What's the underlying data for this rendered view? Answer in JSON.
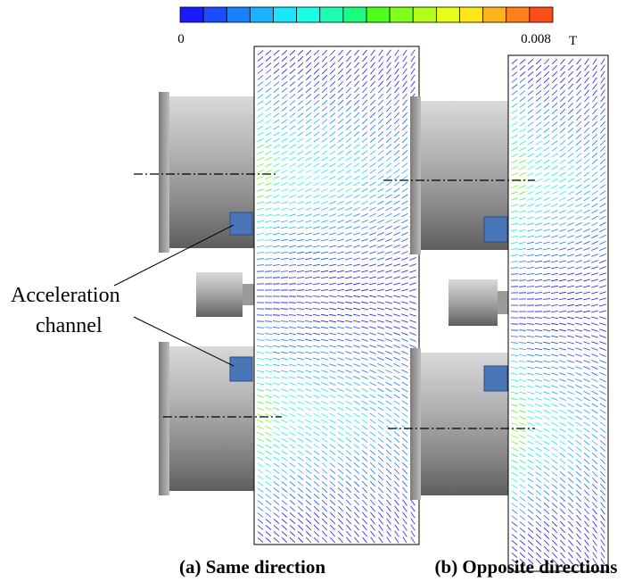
{
  "colorbar": {
    "min": 0,
    "max": 0.008,
    "unit": "T",
    "colormap": [
      "#1a1aff",
      "#1a4dff",
      "#1a80ff",
      "#1ab3ff",
      "#1ae6ff",
      "#1affe6",
      "#1affb3",
      "#1aff80",
      "#4dff1a",
      "#80ff1a",
      "#b3ff1a",
      "#e6ff1a",
      "#ffe61a",
      "#ffb31a",
      "#ff801a",
      "#ff4d1a"
    ]
  },
  "annotation": {
    "line1": "Acceleration",
    "line2": "channel"
  },
  "captions": {
    "a": "(a) Same direction",
    "b": "(b) Opposite directions"
  }
}
